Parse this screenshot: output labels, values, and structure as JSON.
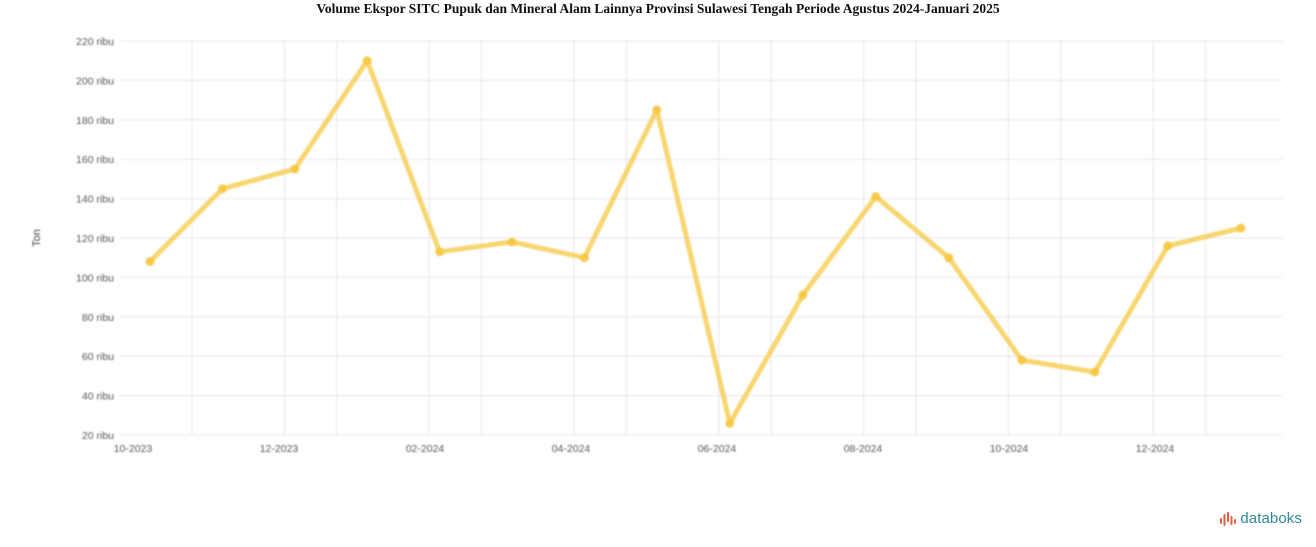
{
  "chart_data": {
    "type": "line",
    "title": "Volume Ekspor SITC Pupuk dan Mineral Alam Lainnya Provinsi Sulawesi Tengah Periode Agustus 2024-Januari 2025",
    "ylabel": "Ton",
    "xlabel": "",
    "x_tick_labels": [
      "10-2023",
      "12-2023",
      "02-2024",
      "04-2024",
      "06-2024",
      "08-2024",
      "10-2024",
      "12-2024"
    ],
    "y_tick_labels": [
      "20 ribu",
      "40 ribu",
      "60 ribu",
      "80 ribu",
      "100 ribu",
      "120 ribu",
      "140 ribu",
      "160 ribu",
      "180 ribu",
      "200 ribu",
      "220 ribu"
    ],
    "ylim": [
      20000,
      220000
    ],
    "grid": true,
    "legend": "none",
    "series": [
      {
        "color": "#f5c842",
        "points": [
          {
            "x": "2023-10",
            "y": 108000
          },
          {
            "x": "2023-11",
            "y": 145000
          },
          {
            "x": "2023-12",
            "y": 155000
          },
          {
            "x": "2024-01",
            "y": 210000
          },
          {
            "x": "2024-02",
            "y": 113000
          },
          {
            "x": "2024-03",
            "y": 118000
          },
          {
            "x": "2024-04",
            "y": 110000
          },
          {
            "x": "2024-05",
            "y": 185000
          },
          {
            "x": "2024-06",
            "y": 26000
          },
          {
            "x": "2024-07",
            "y": 91000
          },
          {
            "x": "2024-08",
            "y": 141000
          },
          {
            "x": "2024-09",
            "y": 110000
          },
          {
            "x": "2024-10",
            "y": 58000
          },
          {
            "x": "2024-11",
            "y": 52000
          },
          {
            "x": "2024-12",
            "y": 116000
          },
          {
            "x": "2025-01",
            "y": 125000
          }
        ]
      }
    ]
  },
  "brand": {
    "name": "databoks",
    "color": "#2f8a96",
    "icon": "databoks-bars-icon",
    "icon_color": "#e2603f"
  }
}
